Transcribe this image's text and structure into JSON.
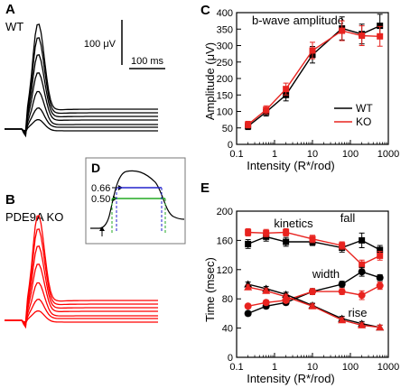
{
  "panel_labels": {
    "a": "A",
    "b": "B",
    "c": "C",
    "d": "D",
    "e": "E"
  },
  "panel_a": {
    "genotype": "WT",
    "scale_amplitude": "100 μV",
    "scale_time": "100 ms",
    "color": "#000000"
  },
  "panel_b": {
    "genotype": "PDE9A KO",
    "color": "#ff0000"
  },
  "panel_d": {
    "levels": [
      "0.66",
      "0.50"
    ],
    "colors": {
      "upper": "#2222cc",
      "lower": "#22aa22",
      "marker": "#000000"
    }
  },
  "colors": {
    "WT": "#000000",
    "KO": "#e8231f"
  },
  "chart_data": [
    {
      "type": "line",
      "title": "b-wave amplitude",
      "xlabel": "Intensity (R*/rod)",
      "ylabel": "Amplitude (μV)",
      "xscale": "log",
      "xlim": [
        0.1,
        1000
      ],
      "ylim": [
        0,
        400
      ],
      "xticks": [
        "0.1",
        "1",
        "10",
        "100",
        "1000"
      ],
      "yticks": [
        "0",
        "50",
        "100",
        "150",
        "200",
        "250",
        "300",
        "350",
        "400"
      ],
      "legend": {
        "placement": "lower-right",
        "entries": [
          "WT",
          "KO"
        ]
      },
      "x": [
        0.2,
        0.6,
        2,
        10,
        60,
        200,
        600
      ],
      "series": [
        {
          "name": "WT",
          "values": [
            55,
            98,
            150,
            272,
            352,
            335,
            360
          ],
          "errors": [
            10,
            12,
            18,
            25,
            35,
            30,
            35
          ]
        },
        {
          "name": "KO",
          "values": [
            60,
            105,
            168,
            285,
            345,
            330,
            328
          ],
          "errors": [
            10,
            12,
            18,
            25,
            30,
            30,
            30
          ]
        }
      ]
    },
    {
      "type": "line",
      "title": "kinetics",
      "xlabel": "Intensity (R*/rod)",
      "ylabel": "Time (msec)",
      "xscale": "log",
      "xlim": [
        0.1,
        1000
      ],
      "ylim": [
        0,
        200
      ],
      "xticks": [
        "0.1",
        "1",
        "10",
        "100",
        "1000"
      ],
      "yticks": [
        "0",
        "40",
        "80",
        "120",
        "160",
        "200"
      ],
      "group_labels": [
        "fall",
        "width",
        "rise"
      ],
      "x": [
        0.2,
        0.6,
        2,
        10,
        60,
        200,
        600
      ],
      "series": [
        {
          "group": "fall",
          "genotype": "WT",
          "marker": "square",
          "values": [
            155,
            165,
            158,
            158,
            150,
            160,
            147
          ],
          "errors": [
            6,
            6,
            6,
            5,
            6,
            10,
            6
          ]
        },
        {
          "group": "fall",
          "genotype": "KO",
          "marker": "square",
          "values": [
            171,
            170,
            171,
            162,
            153,
            127,
            139
          ],
          "errors": [
            5,
            5,
            5,
            5,
            5,
            6,
            6
          ]
        },
        {
          "group": "width",
          "genotype": "WT",
          "marker": "circle",
          "values": [
            60,
            70,
            75,
            90,
            100,
            117,
            109
          ],
          "errors": [
            3,
            3,
            3,
            4,
            4,
            6,
            4
          ]
        },
        {
          "group": "width",
          "genotype": "KO",
          "marker": "circle",
          "values": [
            70,
            75,
            78,
            90,
            90,
            85,
            98
          ],
          "errors": [
            3,
            3,
            3,
            4,
            4,
            6,
            5
          ]
        },
        {
          "group": "rise",
          "genotype": "WT",
          "marker": "triangle",
          "values": [
            100,
            94,
            86,
            71,
            53,
            46,
            41
          ],
          "errors": [
            3,
            3,
            3,
            3,
            3,
            3,
            3
          ]
        },
        {
          "group": "rise",
          "genotype": "KO",
          "marker": "triangle",
          "values": [
            96,
            91,
            83,
            70,
            51,
            44,
            41
          ],
          "errors": [
            3,
            3,
            3,
            3,
            3,
            3,
            3
          ]
        }
      ]
    }
  ]
}
